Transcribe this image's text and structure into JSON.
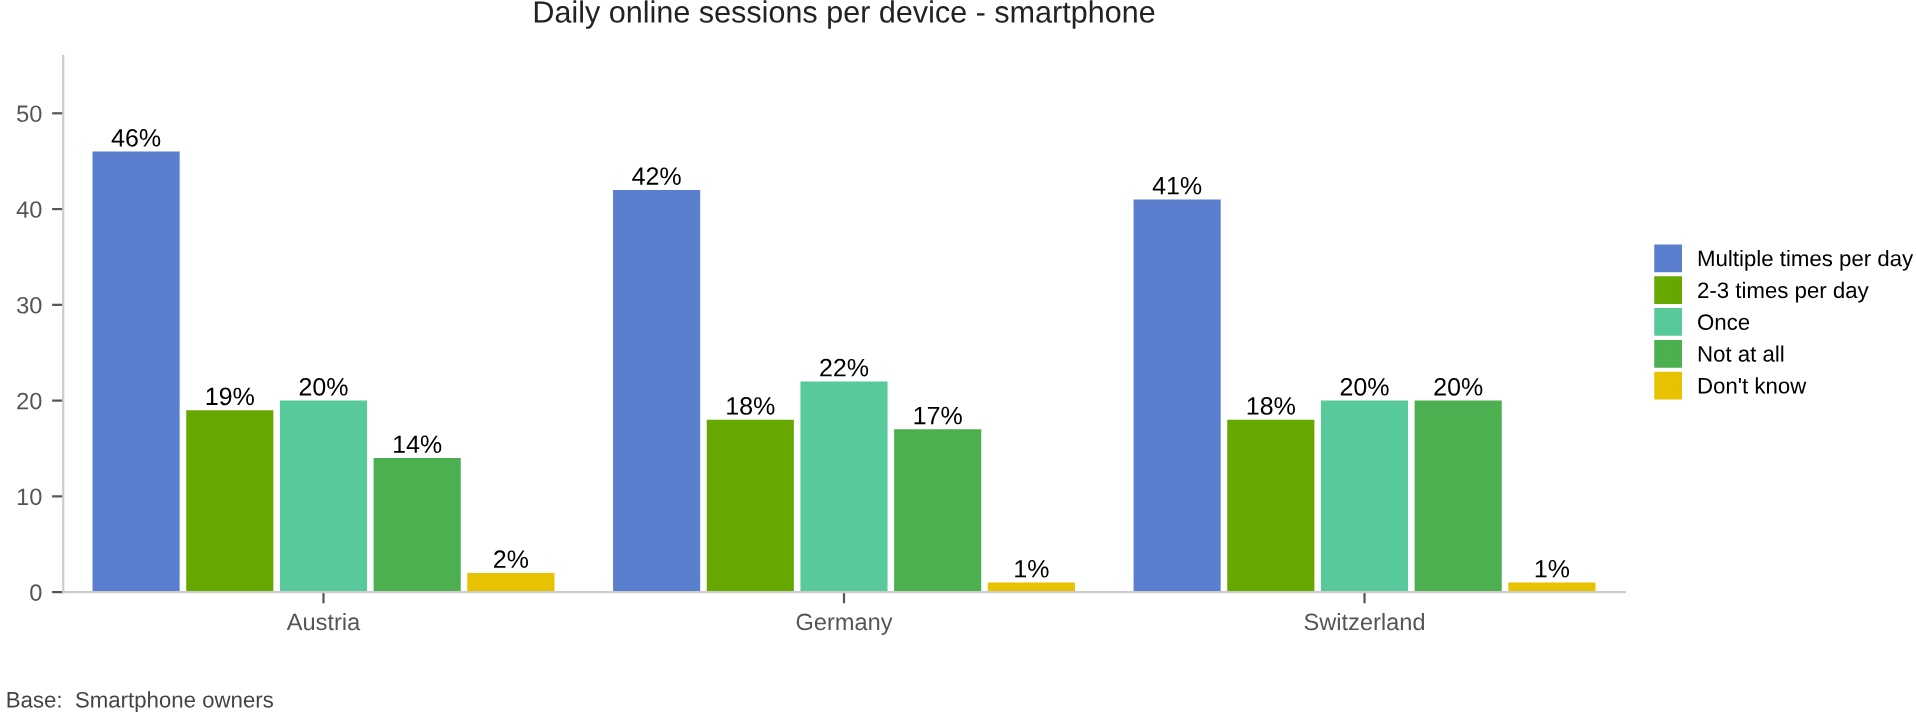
{
  "chart_data": {
    "type": "bar",
    "title": "Daily online sessions per device - smartphone",
    "categories": [
      "Austria",
      "Germany",
      "Switzerland"
    ],
    "series": [
      {
        "name": "Multiple times per day",
        "color": "#5b7fcf",
        "values": [
          46,
          42,
          41
        ],
        "value_labels": [
          "46%",
          "42%",
          "41%"
        ]
      },
      {
        "name": "2-3 times per day",
        "color": "#66a800",
        "values": [
          19,
          18,
          18
        ],
        "value_labels": [
          "19%",
          "18%",
          "18%"
        ]
      },
      {
        "name": "Once",
        "color": "#57c99b",
        "values": [
          20,
          22,
          20
        ],
        "value_labels": [
          "20%",
          "22%",
          "20%"
        ]
      },
      {
        "name": "Not at all",
        "color": "#4caf50",
        "values": [
          14,
          17,
          20
        ],
        "value_labels": [
          "14%",
          "17%",
          "20%"
        ]
      },
      {
        "name": "Don't know",
        "color": "#e6c200",
        "values": [
          2,
          1,
          1
        ],
        "value_labels": [
          "2%",
          "1%",
          "1%"
        ]
      }
    ],
    "ylim": [
      0,
      56
    ],
    "yticks": [
      0,
      10,
      20,
      30,
      40,
      50
    ],
    "grid": false,
    "legend": "right",
    "annotations": [
      "Base:  Smartphone owners"
    ]
  }
}
